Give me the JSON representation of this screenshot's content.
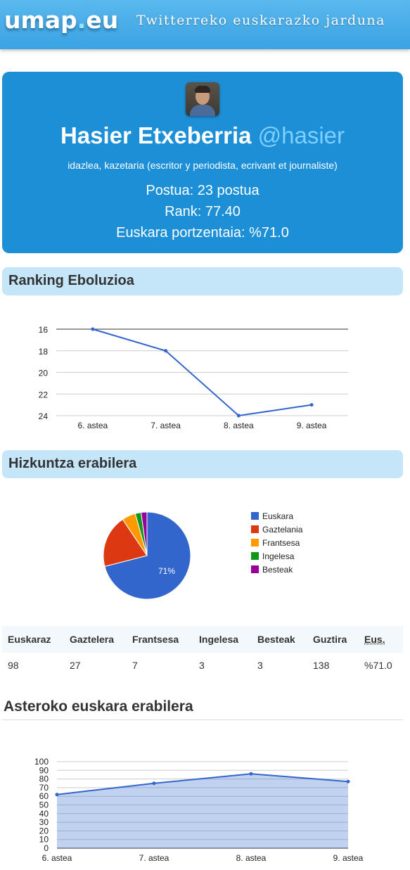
{
  "header": {
    "logo_main": "umap",
    "logo_dot": ".",
    "logo_tld": "eu",
    "tagline": "Twitterreko euskarazko jarduna"
  },
  "profile": {
    "name": "Hasier Etxeberria",
    "handle": "@hasier",
    "bio": "idazlea, kazetaria (escritor y periodista, ecrivant et journaliste)",
    "postua": "Postua: 23 postua",
    "rank": "Rank: 77.40",
    "euskara": "Euskara portzentaia: %71.0"
  },
  "sections": {
    "ranking": "Ranking Eboluzioa",
    "hizkuntza": "Hizkuntza erabilera",
    "asteroko": "Asteroko euskara erabilera"
  },
  "chart_data": [
    {
      "type": "line",
      "categories": [
        "6. astea",
        "7. astea",
        "8. astea",
        "9. astea"
      ],
      "values": [
        16,
        18,
        24,
        23
      ],
      "title": "",
      "xlabel": "",
      "ylabel": "",
      "ylim": [
        16,
        24
      ],
      "yticks": [
        "16",
        "18",
        "20",
        "22",
        "24"
      ],
      "y_inverted": true,
      "grid": true,
      "color": "#3366cc"
    },
    {
      "type": "pie",
      "categories": [
        "Euskara",
        "Gaztelania",
        "Frantsesa",
        "Ingelesa",
        "Besteak"
      ],
      "values": [
        98,
        27,
        7,
        3,
        3
      ],
      "slice_label": "71%",
      "colors": [
        "#3366cc",
        "#dc3912",
        "#ff9900",
        "#109618",
        "#990099"
      ],
      "legend": "right"
    },
    {
      "type": "area",
      "categories": [
        "6. astea",
        "7. astea",
        "8. astea",
        "9. astea"
      ],
      "values": [
        62,
        75,
        86,
        77
      ],
      "ylim": [
        0,
        100
      ],
      "yticks": [
        "0",
        "10",
        "20",
        "30",
        "40",
        "50",
        "60",
        "70",
        "80",
        "90",
        "100"
      ],
      "grid": true,
      "color": "#3366cc"
    }
  ],
  "table": {
    "headers": [
      "Euskaraz",
      "Gaztelera",
      "Frantsesa",
      "Ingelesa",
      "Besteak",
      "Guztira",
      "Eus."
    ],
    "row": [
      "98",
      "27",
      "7",
      "3",
      "3",
      "138",
      "%71.0"
    ]
  }
}
